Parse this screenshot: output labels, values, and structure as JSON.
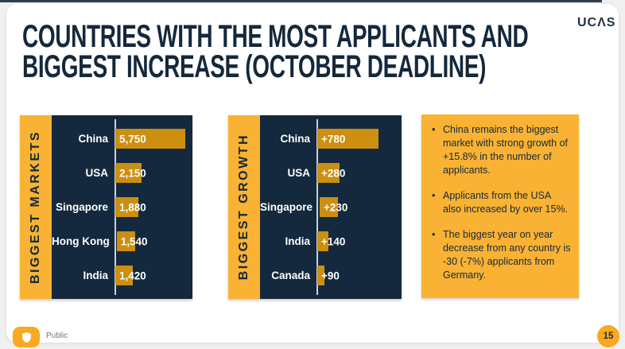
{
  "colors": {
    "navy": "#14293D",
    "yellow": "#F9B233",
    "bar_orange": "#CC8F10",
    "axis_gray": "#C9D2DA",
    "badge_orange": "#F8A91F",
    "page_background": "#F0F0F1"
  },
  "header": {
    "title_line1": "COUNTRIES WITH THE MOST APPLICANTS AND",
    "title_line2": "BIGGEST INCREASE (OCTOBER DEADLINE)",
    "logo_text": "UCΛS"
  },
  "chart_data": [
    {
      "type": "bar",
      "orientation": "horizontal",
      "title": "BIGGEST MARKETS",
      "categories": [
        "China",
        "USA",
        "Singapore",
        "Hong Kong",
        "India"
      ],
      "values": [
        5750,
        2150,
        1880,
        1540,
        1420
      ],
      "value_labels": [
        "5,750",
        "2,150",
        "1,880",
        "1,540",
        "1,420"
      ],
      "xlim": [
        0,
        5750
      ],
      "grid": false,
      "legend": false,
      "bar_color": "#CC8F10",
      "panel_color": "#14293D",
      "strip_color": "#F9B233",
      "axis_color": "#C9D2DA"
    },
    {
      "type": "bar",
      "orientation": "horizontal",
      "title": "BIGGEST GROWTH",
      "categories": [
        "China",
        "USA",
        "Singapore",
        "India",
        "Canada"
      ],
      "values": [
        780,
        280,
        230,
        140,
        90
      ],
      "value_labels": [
        "+780",
        "+280",
        "+230",
        "+140",
        "+90"
      ],
      "xlim": [
        0,
        780
      ],
      "grid": false,
      "legend": false,
      "bar_color": "#CC8F10",
      "panel_color": "#14293D",
      "strip_color": "#F9B233",
      "axis_color": "#C9D2DA"
    }
  ],
  "notes": {
    "background": "#F9B233",
    "text_color": "#15293C",
    "bullets": [
      "China remains the biggest market with strong growth of +15.8% in the number of applicants.",
      "Applicants from the USA also increased by over 15%.",
      "The biggest year on year decrease from any country is -30 (-7%) applicants from Germany."
    ]
  },
  "footer": {
    "classification_label": "Public",
    "page_number": "15",
    "badge_color": "#F8A91F",
    "shield_icon": "shield-icon"
  }
}
